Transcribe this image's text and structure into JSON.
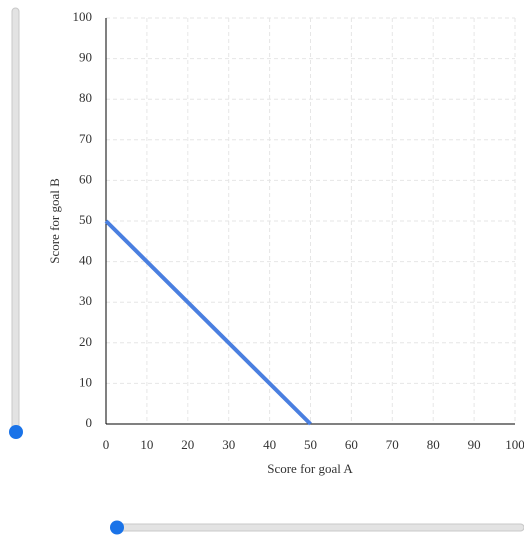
{
  "chart_data": {
    "type": "line",
    "x": [
      0,
      50
    ],
    "values": [
      50,
      0
    ],
    "color": "#4a7fe0",
    "xlabel": "Score for goal A",
    "ylabel": "Score for goal B",
    "xlim": [
      0,
      100
    ],
    "ylim": [
      0,
      100
    ],
    "xticks": [
      0,
      10,
      20,
      30,
      40,
      50,
      60,
      70,
      80,
      90,
      100
    ],
    "yticks": [
      0,
      10,
      20,
      30,
      40,
      50,
      60,
      70,
      80,
      90,
      100
    ],
    "grid": true
  }
}
